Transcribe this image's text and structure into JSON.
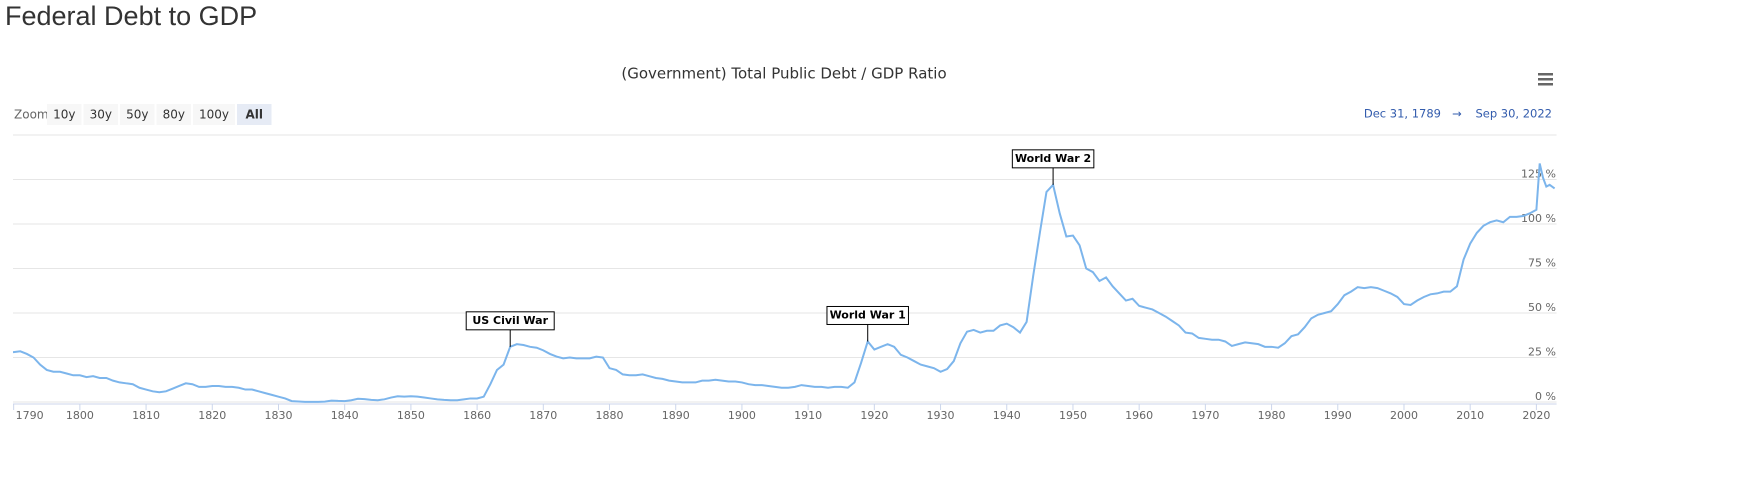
{
  "page_title": "Federal Debt to GDP",
  "zoom": {
    "label": "Zoom",
    "buttons": [
      "10y",
      "30y",
      "50y",
      "80y",
      "100y",
      "All"
    ],
    "selected": 5
  },
  "range": {
    "from": "Dec 31, 1789",
    "arrow": "→",
    "to": "Sep 30, 2022"
  },
  "chart_data": {
    "type": "line",
    "title": "(Government) Total Public Debt / GDP Ratio",
    "color": "#7cb5ec",
    "grid": true,
    "xlim": [
      1789.9,
      2022.75
    ],
    "xticks": [
      1790,
      1800,
      1810,
      1820,
      1830,
      1840,
      1850,
      1860,
      1870,
      1880,
      1890,
      1900,
      1910,
      1920,
      1930,
      1940,
      1950,
      1960,
      1970,
      1980,
      1990,
      2000,
      2010,
      2020
    ],
    "ylim": [
      0,
      150
    ],
    "yticks": [
      {
        "value": 0,
        "label": "0 %"
      },
      {
        "value": 25,
        "label": "25 %"
      },
      {
        "value": 50,
        "label": "50 %"
      },
      {
        "value": 75,
        "label": "75 %"
      },
      {
        "value": 100,
        "label": "100 %"
      },
      {
        "value": 125,
        "label": "125 %"
      }
    ],
    "x": [
      1789.9,
      1790,
      1791,
      1792,
      1793,
      1794,
      1795,
      1796,
      1797,
      1798,
      1799,
      1800,
      1801,
      1802,
      1803,
      1804,
      1805,
      1806,
      1807,
      1808,
      1809,
      1810,
      1811,
      1812,
      1813,
      1814,
      1815,
      1816,
      1817,
      1818,
      1819,
      1820,
      1821,
      1822,
      1823,
      1824,
      1825,
      1826,
      1827,
      1828,
      1829,
      1830,
      1831,
      1832,
      1833,
      1834,
      1835,
      1836,
      1837,
      1838,
      1839,
      1840,
      1841,
      1842,
      1843,
      1844,
      1845,
      1846,
      1847,
      1848,
      1849,
      1850,
      1851,
      1852,
      1853,
      1854,
      1855,
      1856,
      1857,
      1858,
      1859,
      1860,
      1861,
      1862,
      1863,
      1864,
      1865,
      1866,
      1867,
      1868,
      1869,
      1870,
      1871,
      1872,
      1873,
      1874,
      1875,
      1876,
      1877,
      1878,
      1879,
      1880,
      1881,
      1882,
      1883,
      1884,
      1885,
      1886,
      1887,
      1888,
      1889,
      1890,
      1891,
      1892,
      1893,
      1894,
      1895,
      1896,
      1897,
      1898,
      1899,
      1900,
      1901,
      1902,
      1903,
      1904,
      1905,
      1906,
      1907,
      1908,
      1909,
      1910,
      1911,
      1912,
      1913,
      1914,
      1915,
      1916,
      1917,
      1918,
      1919,
      1920,
      1921,
      1922,
      1923,
      1924,
      1925,
      1926,
      1927,
      1928,
      1929,
      1930,
      1931,
      1932,
      1933,
      1934,
      1935,
      1936,
      1937,
      1938,
      1939,
      1940,
      1941,
      1942,
      1943,
      1944,
      1945,
      1946,
      1947,
      1948,
      1949,
      1950,
      1951,
      1952,
      1953,
      1954,
      1955,
      1956,
      1957,
      1958,
      1959,
      1960,
      1961,
      1962,
      1963,
      1964,
      1965,
      1966,
      1967,
      1968,
      1969,
      1970,
      1971,
      1972,
      1973,
      1974,
      1975,
      1976,
      1977,
      1978,
      1979,
      1980,
      1981,
      1982,
      1983,
      1984,
      1985,
      1986,
      1987,
      1988,
      1989,
      1990,
      1991,
      1992,
      1993,
      1994,
      1995,
      1996,
      1997,
      1998,
      1999,
      2000,
      2001,
      2002,
      2003,
      2004,
      2005,
      2006,
      2007,
      2008,
      2009,
      2010,
      2011,
      2012,
      2013,
      2014,
      2015,
      2016,
      2017,
      2018,
      2019,
      2020,
      2020.5,
      2021,
      2021.5,
      2022,
      2022.75
    ],
    "values": [
      28,
      28,
      28.5,
      27,
      25,
      21,
      18,
      17,
      17,
      16,
      15,
      15,
      14,
      14.5,
      13.5,
      13.5,
      12,
      11,
      10.5,
      10,
      8,
      7,
      6,
      5.5,
      6,
      7.5,
      9,
      10.5,
      10,
      8.5,
      8.5,
      9,
      9,
      8.5,
      8.5,
      8,
      7,
      7,
      6,
      5,
      4,
      3,
      2,
      0.5,
      0.3,
      0.1,
      0.1,
      0.1,
      0.2,
      0.8,
      0.6,
      0.5,
      1,
      1.8,
      1.6,
      1.2,
      1,
      1.5,
      2.5,
      3.2,
      3,
      3.2,
      3,
      2.5,
      2,
      1.5,
      1.2,
      1,
      1,
      1.5,
      2,
      2,
      3,
      10,
      18,
      21,
      31,
      32.5,
      32,
      31,
      30.5,
      29,
      27,
      25.5,
      24.5,
      25,
      24.5,
      24.5,
      24.5,
      25.5,
      25,
      19,
      18,
      15.5,
      15,
      15,
      15.5,
      14.5,
      13.5,
      13,
      12,
      11.5,
      11,
      11,
      11,
      12,
      12,
      12.5,
      12,
      11.5,
      11.5,
      11,
      10,
      9.5,
      9.5,
      9,
      8.5,
      8,
      8,
      8.5,
      9.5,
      9,
      8.5,
      8.5,
      8,
      8.5,
      8.5,
      8,
      11,
      22,
      34,
      29.5,
      31,
      32.5,
      31,
      26.5,
      25,
      23,
      21,
      20,
      19,
      17,
      18.5,
      23,
      33,
      39.5,
      40.5,
      39,
      40,
      40,
      43,
      44,
      42,
      39,
      45,
      71,
      95,
      118,
      122,
      106,
      93,
      93.5,
      88,
      75,
      73,
      68,
      70,
      65,
      61,
      57,
      58,
      54,
      53,
      52,
      50,
      48,
      45.5,
      43,
      39,
      38.5,
      36,
      35.5,
      35,
      35,
      34,
      31.5,
      32.5,
      33.5,
      33,
      32.5,
      31,
      31,
      30.5,
      33,
      37,
      38,
      42,
      47,
      49,
      50,
      51,
      55,
      60,
      62,
      64.5,
      64,
      64.5,
      64,
      62.5,
      61,
      59,
      55,
      54.5,
      57,
      59,
      60.5,
      61,
      62,
      62,
      65,
      80,
      89,
      95,
      99,
      101,
      102,
      101,
      104,
      104,
      104.5,
      106,
      108,
      134,
      126,
      121,
      122,
      120
    ],
    "annotations": [
      {
        "text": "US Civil War",
        "x": 1865
      },
      {
        "text": "World War 1",
        "x": 1919
      },
      {
        "text": "World War 2",
        "x": 1947
      }
    ]
  }
}
